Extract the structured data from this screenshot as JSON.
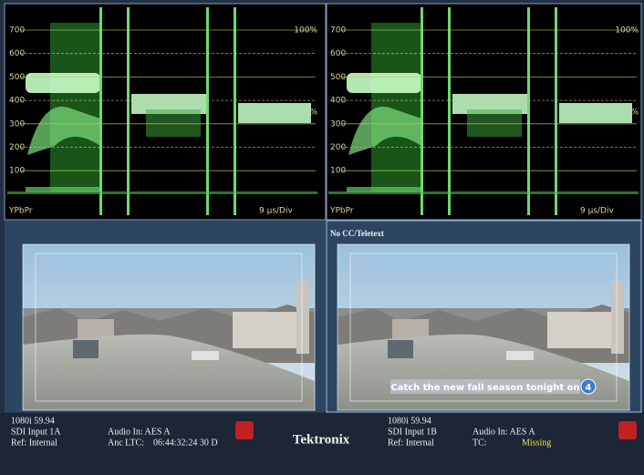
{
  "waveforms": [
    {
      "scale": [
        "700",
        "600",
        "500",
        "400",
        "300",
        "200",
        "100"
      ],
      "top_percent": "100%",
      "mid_percent": "%",
      "format": "YPbPr",
      "sweep": "9 µs/Div"
    },
    {
      "scale": [
        "700",
        "600",
        "500",
        "400",
        "300",
        "200",
        "100"
      ],
      "top_percent": "100%",
      "mid_percent": "%",
      "format": "YPbPr",
      "sweep": "9 µs/Div"
    }
  ],
  "pictures": {
    "right_overlay": "No CC/Teletext",
    "caption": "Catch the new fall season tonight on",
    "channel": "4"
  },
  "status": {
    "left": {
      "format": "1080i 59.94",
      "input": "SDI Input 1A",
      "ref": "Ref: Internal",
      "audio": "Audio In: AES A",
      "ltc_label": "Anc LTC:",
      "ltc_value": "06:44:32:24 30 D"
    },
    "brand": "Tektronix",
    "right": {
      "format": "1080i 59.94",
      "input": "SDI Input 1B",
      "ref": "Ref: Internal",
      "audio": "Audio In: AES A",
      "tc_label": "TC:",
      "tc_value": "Missing"
    }
  }
}
